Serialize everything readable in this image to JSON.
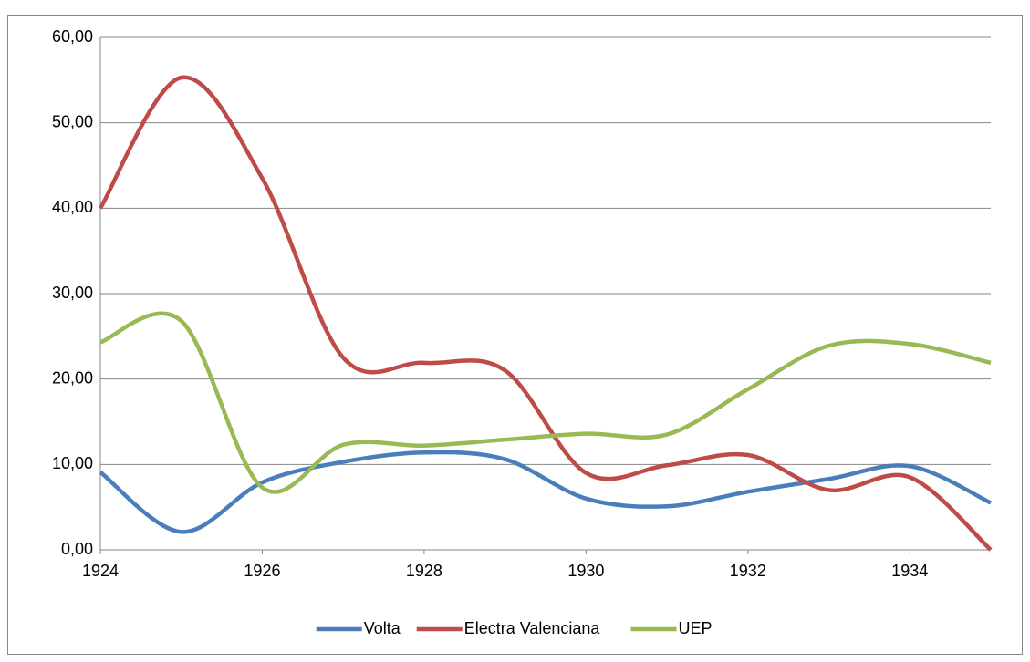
{
  "chart_data": {
    "type": "line",
    "x": [
      1924,
      1925,
      1926,
      1927,
      1928,
      1929,
      1930,
      1931,
      1932,
      1933,
      1934,
      1935
    ],
    "series": [
      {
        "name": "Volta",
        "color": "#4a7ebb",
        "values": [
          9.1,
          2.1,
          7.9,
          10.3,
          11.4,
          10.6,
          6.0,
          5.1,
          6.8,
          8.3,
          9.8,
          5.5
        ]
      },
      {
        "name": "Electra Valenciana",
        "color": "#be4b48",
        "values": [
          40.0,
          55.3,
          43.5,
          22.5,
          21.9,
          21.0,
          9.0,
          9.9,
          11.1,
          7.0,
          8.5,
          0.0
        ]
      },
      {
        "name": "UEP",
        "color": "#98b954",
        "values": [
          24.3,
          26.8,
          7.3,
          12.3,
          12.2,
          12.9,
          13.6,
          13.5,
          18.8,
          23.9,
          24.1,
          21.9
        ]
      }
    ],
    "xlim": [
      1924,
      1935
    ],
    "xticks": [
      1924,
      1926,
      1928,
      1930,
      1932,
      1934
    ],
    "ylim": [
      0,
      60
    ],
    "yticks": [
      {
        "value": 0,
        "label": "0,00"
      },
      {
        "value": 10,
        "label": "10,00"
      },
      {
        "value": 20,
        "label": "20,00"
      },
      {
        "value": 30,
        "label": "30,00"
      },
      {
        "value": 40,
        "label": "40,00"
      },
      {
        "value": 50,
        "label": "50,00"
      },
      {
        "value": 60,
        "label": "60,00"
      }
    ],
    "grid": true,
    "legend": "bottom"
  }
}
